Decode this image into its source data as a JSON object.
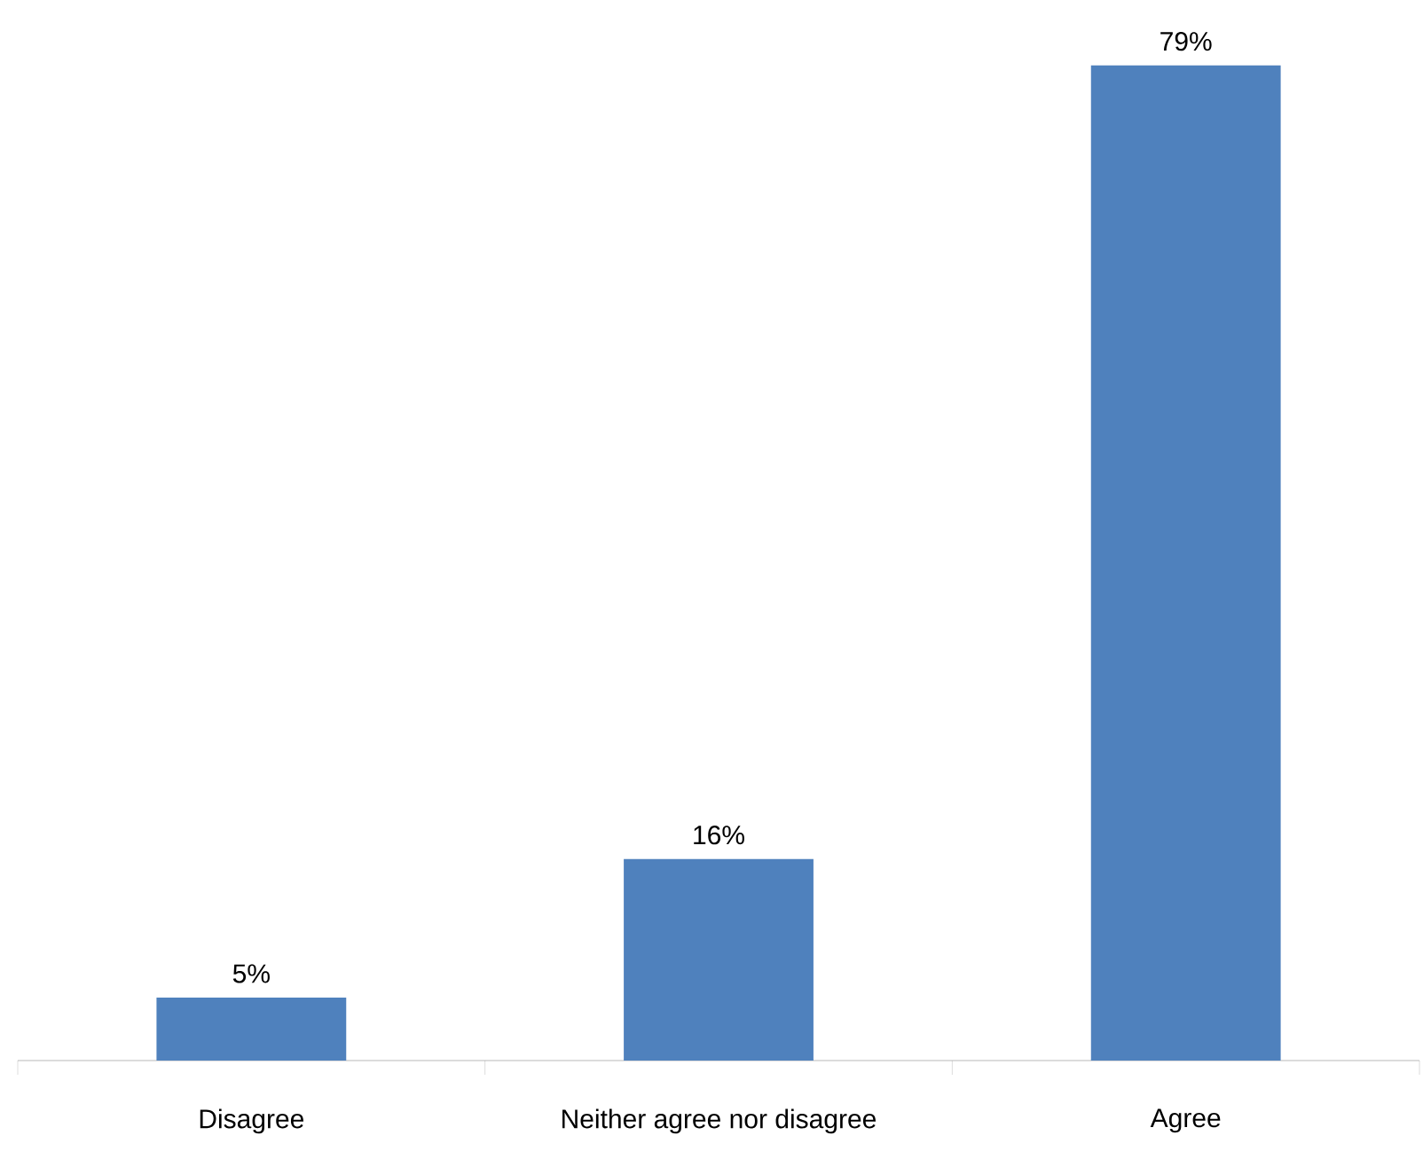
{
  "chart_data": {
    "type": "bar",
    "categories": [
      "Disagree",
      "Neither agree nor disagree",
      "Agree"
    ],
    "values": [
      5,
      16,
      79
    ],
    "value_labels": [
      "5%",
      "16%",
      "79%"
    ],
    "color": "#4f81bd"
  }
}
